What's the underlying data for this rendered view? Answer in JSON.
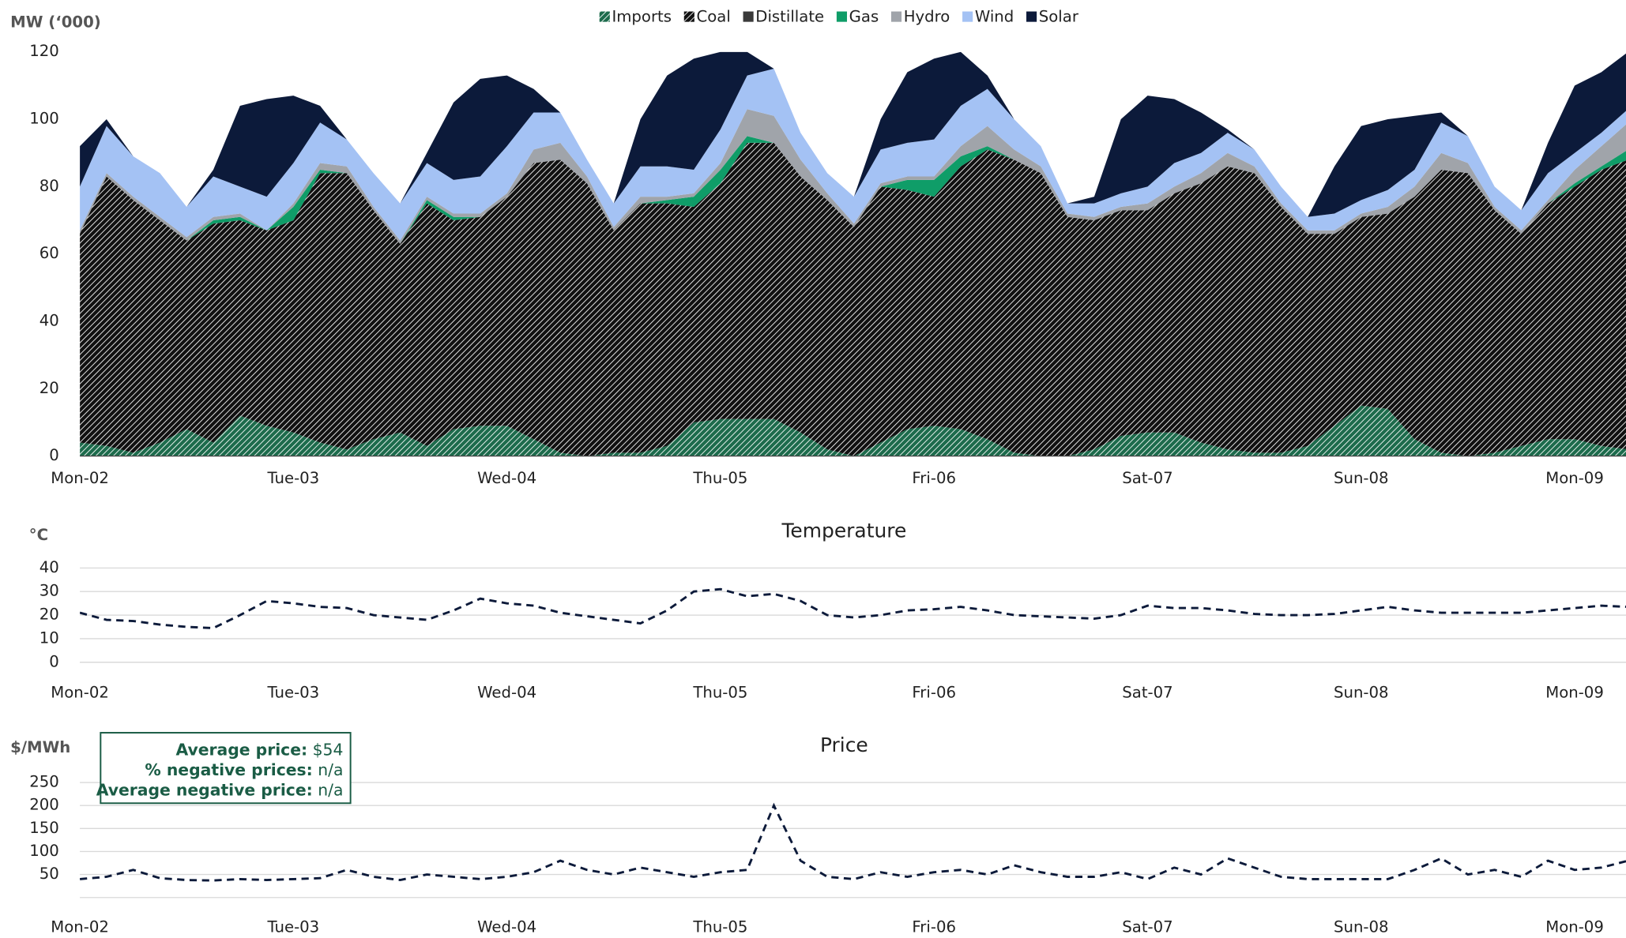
{
  "chart_data": [
    {
      "type": "area",
      "ylabel": "MW (‘000)",
      "legend": "top",
      "categories": [
        "Mon-02",
        null,
        null,
        null,
        null,
        null,
        null,
        null,
        "Tue-03",
        null,
        null,
        null,
        null,
        null,
        null,
        null,
        "Wed-04",
        null,
        null,
        null,
        null,
        null,
        null,
        null,
        "Thu-05",
        null,
        null,
        null,
        null,
        null,
        null,
        null,
        "Fri-06",
        null,
        null,
        null,
        null,
        null,
        null,
        null,
        "Sat-07",
        null,
        null,
        null,
        null,
        null,
        null,
        null,
        "Sun-08",
        null,
        null,
        null,
        null,
        null,
        null,
        null,
        "Mon-09",
        null,
        null
      ],
      "ylim": [
        0,
        120
      ],
      "yticks": [
        0,
        20,
        40,
        60,
        80,
        100,
        120
      ],
      "grid": false,
      "series": [
        {
          "name": "Imports",
          "color": "#1d6b4c",
          "pattern": "hatch",
          "values": [
            4,
            3,
            1,
            4,
            8,
            4,
            12,
            9,
            7,
            4,
            2,
            5,
            7,
            3,
            8,
            9,
            9,
            5,
            1,
            0,
            1,
            1,
            3,
            10,
            11,
            11,
            11,
            7,
            2,
            0,
            4,
            8,
            9,
            8,
            5,
            1,
            0,
            0,
            2,
            6,
            7,
            7,
            4,
            2,
            1,
            1,
            3,
            9,
            15,
            14,
            5,
            1,
            0,
            1,
            3,
            5,
            5,
            3,
            2
          ]
        },
        {
          "name": "Coal",
          "color": "#111111",
          "pattern": "hatch",
          "values": [
            62,
            80,
            75,
            66,
            56,
            65,
            58,
            58,
            63,
            80,
            82,
            68,
            56,
            72,
            62,
            62,
            68,
            82,
            87,
            81,
            66,
            74,
            72,
            64,
            70,
            82,
            82,
            76,
            74,
            68,
            76,
            71,
            68,
            78,
            86,
            87,
            84,
            71,
            68,
            67,
            66,
            71,
            77,
            84,
            83,
            73,
            63,
            57,
            56,
            58,
            72,
            84,
            84,
            72,
            63,
            70,
            75,
            82,
            86
          ]
        },
        {
          "name": "Distillate",
          "color": "#3a3a3a",
          "values": [
            0,
            0,
            0,
            0,
            0,
            0,
            0,
            0,
            0,
            0,
            0,
            0,
            0,
            0,
            0,
            0,
            0,
            0,
            0,
            0,
            0,
            0,
            0,
            0,
            0,
            0,
            0,
            0,
            0,
            0,
            0,
            0,
            0,
            0,
            0,
            0,
            0,
            0,
            0,
            0,
            0,
            0,
            0,
            0,
            0,
            0,
            0,
            0,
            0,
            0,
            0,
            0,
            0,
            0,
            0,
            0,
            0,
            0,
            0
          ]
        },
        {
          "name": "Gas",
          "color": "#0f9d68",
          "values": [
            0,
            0,
            0,
            0,
            0,
            1,
            1,
            0,
            4,
            1,
            0,
            0,
            0,
            1,
            1,
            0,
            0,
            0,
            0,
            0,
            0,
            0,
            1,
            3,
            4,
            2,
            0,
            0,
            0,
            0,
            0,
            3,
            5,
            3,
            1,
            0,
            0,
            0,
            0,
            0,
            0,
            0,
            0,
            0,
            0,
            0,
            0,
            0,
            0,
            0,
            0,
            0,
            0,
            0,
            0,
            0,
            1,
            1,
            3
          ]
        },
        {
          "name": "Hydro",
          "color": "#a0a4aa",
          "values": [
            1,
            1,
            1,
            1,
            1,
            1,
            1,
            0,
            1,
            2,
            2,
            1,
            1,
            1,
            1,
            1,
            1,
            4,
            5,
            2,
            1,
            2,
            1,
            1,
            2,
            8,
            8,
            5,
            2,
            1,
            1,
            1,
            1,
            3,
            6,
            3,
            2,
            1,
            1,
            1,
            2,
            2,
            3,
            4,
            2,
            1,
            1,
            1,
            1,
            2,
            3,
            5,
            3,
            1,
            1,
            1,
            4,
            6,
            8
          ]
        },
        {
          "name": "Wind",
          "color": "#a4c2f4",
          "values": [
            13,
            14,
            12,
            13,
            9,
            12,
            8,
            10,
            12,
            12,
            8,
            10,
            11,
            10,
            10,
            11,
            14,
            11,
            9,
            5,
            7,
            9,
            9,
            7,
            10,
            10,
            14,
            8,
            6,
            8,
            10,
            10,
            11,
            12,
            11,
            9,
            6,
            3,
            4,
            4,
            5,
            7,
            6,
            6,
            5,
            5,
            4,
            5,
            4,
            5,
            5,
            9,
            8,
            6,
            6,
            8,
            5,
            4,
            4
          ]
        },
        {
          "name": "Solar",
          "color": "#0c1a3a",
          "values": [
            12,
            2,
            0,
            0,
            0,
            2,
            24,
            29,
            20,
            5,
            0,
            0,
            0,
            3,
            23,
            29,
            21,
            7,
            0,
            0,
            0,
            14,
            27,
            33,
            23,
            7,
            0,
            0,
            0,
            0,
            9,
            21,
            24,
            16,
            4,
            0,
            0,
            0,
            2,
            22,
            27,
            19,
            12,
            1,
            0,
            0,
            0,
            14,
            22,
            21,
            16,
            3,
            0,
            0,
            0,
            9,
            20,
            18,
            17
          ]
        }
      ]
    },
    {
      "type": "line",
      "title": "Temperature",
      "ylabel": "°C",
      "categories": [
        "Mon-02",
        null,
        null,
        null,
        null,
        null,
        null,
        null,
        "Tue-03",
        null,
        null,
        null,
        null,
        null,
        null,
        null,
        "Wed-04",
        null,
        null,
        null,
        null,
        null,
        null,
        null,
        "Thu-05",
        null,
        null,
        null,
        null,
        null,
        null,
        null,
        "Fri-06",
        null,
        null,
        null,
        null,
        null,
        null,
        null,
        "Sat-07",
        null,
        null,
        null,
        null,
        null,
        null,
        null,
        "Sun-08",
        null,
        null,
        null,
        null,
        null,
        null,
        null,
        "Mon-09",
        null,
        null
      ],
      "ylim": [
        0,
        40
      ],
      "yticks": [
        0,
        10,
        20,
        30,
        40
      ],
      "grid": true,
      "color": "#0c1a3a",
      "values": [
        21,
        18,
        17.5,
        16,
        15,
        14.5,
        20,
        26,
        25,
        23.5,
        23,
        20,
        19,
        18,
        22,
        27,
        25,
        24,
        21,
        19.5,
        18,
        16.5,
        22,
        30,
        31,
        28,
        29,
        26,
        20,
        19,
        20,
        22,
        22.5,
        23.5,
        22,
        20,
        19.5,
        19,
        18.5,
        20,
        24,
        23,
        23,
        22,
        20.5,
        20,
        20,
        20.5,
        22,
        23.5,
        22,
        21,
        21,
        21,
        21,
        22,
        23,
        24,
        23.5
      ]
    },
    {
      "type": "line",
      "title": "Price",
      "ylabel": "$/MWh",
      "categories": [
        "Mon-02",
        null,
        null,
        null,
        null,
        null,
        null,
        null,
        "Tue-03",
        null,
        null,
        null,
        null,
        null,
        null,
        null,
        "Wed-04",
        null,
        null,
        null,
        null,
        null,
        null,
        null,
        "Thu-05",
        null,
        null,
        null,
        null,
        null,
        null,
        null,
        "Fri-06",
        null,
        null,
        null,
        null,
        null,
        null,
        null,
        "Sat-07",
        null,
        null,
        null,
        null,
        null,
        null,
        null,
        "Sun-08",
        null,
        null,
        null,
        null,
        null,
        null,
        null,
        "Mon-09",
        null,
        null
      ],
      "ylim": [
        0,
        250
      ],
      "yticks": [
        50,
        100,
        150,
        200,
        250
      ],
      "grid": true,
      "color": "#0c1a3a",
      "values": [
        40,
        45,
        60,
        42,
        38,
        37,
        40,
        38,
        40,
        42,
        60,
        45,
        38,
        50,
        45,
        40,
        45,
        55,
        80,
        60,
        50,
        65,
        55,
        45,
        55,
        60,
        200,
        80,
        45,
        40,
        55,
        45,
        55,
        60,
        50,
        70,
        55,
        45,
        45,
        55,
        40,
        65,
        50,
        85,
        65,
        45,
        40,
        40,
        40,
        40,
        60,
        85,
        50,
        60,
        45,
        80,
        60,
        65,
        80
      ],
      "annotations": [
        {
          "label": "Average price:",
          "value": "$54"
        },
        {
          "label": "% negative prices:",
          "value": "n/a"
        },
        {
          "label": "Average negative price:",
          "value": "n/a"
        }
      ]
    }
  ]
}
